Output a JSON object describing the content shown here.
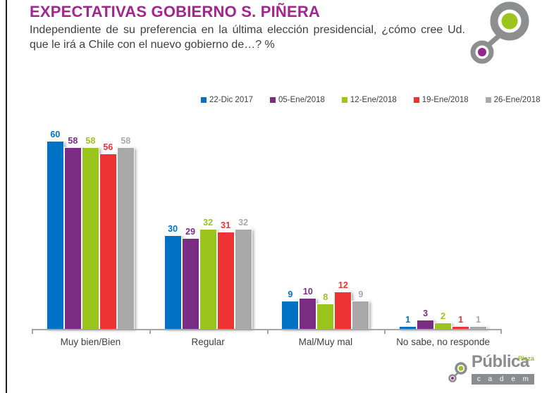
{
  "header": {
    "title": "EXPECTATIVAS GOBIERNO S. PIÑERA",
    "subtitle": "Independiente de su preferencia en la última elección presidencial, ¿cómo cree Ud. que le irá a Chile con el nuevo gobierno de…? %"
  },
  "colors": {
    "title": "#A3268F",
    "text": "#404040",
    "axis": "#A6A6A6",
    "logo_gray": "#8C8E90",
    "logo_green": "#9BC41C",
    "logo_purple": "#93268F"
  },
  "chart_data": {
    "type": "bar",
    "title": "EXPECTATIVAS GOBIERNO S. PIÑERA",
    "categories": [
      "Muy bien/Bien",
      "Regular",
      "Mal/Muy mal",
      "No sabe, no responde"
    ],
    "series": [
      {
        "name": "22-Dic 2017",
        "color": "#0072C6",
        "values": [
          60,
          30,
          9,
          1
        ]
      },
      {
        "name": "05-Ene/2018",
        "color": "#7B2D83",
        "values": [
          58,
          29,
          10,
          3
        ]
      },
      {
        "name": "12-Ene/2018",
        "color": "#9BC41C",
        "values": [
          58,
          32,
          8,
          2
        ]
      },
      {
        "name": "19-Ene/2018",
        "color": "#EE3335",
        "values": [
          56,
          31,
          12,
          1
        ]
      },
      {
        "name": "26-Ene/2018",
        "color": "#A9A9A9",
        "values": [
          58,
          32,
          9,
          1
        ]
      }
    ],
    "ylim": [
      0,
      65
    ],
    "grid": false,
    "legend_position": "top",
    "data_labels": true
  },
  "footer_logo": {
    "brand": "Pública",
    "brand_tag": "Plaza",
    "sub_brand": "c a d e m"
  }
}
